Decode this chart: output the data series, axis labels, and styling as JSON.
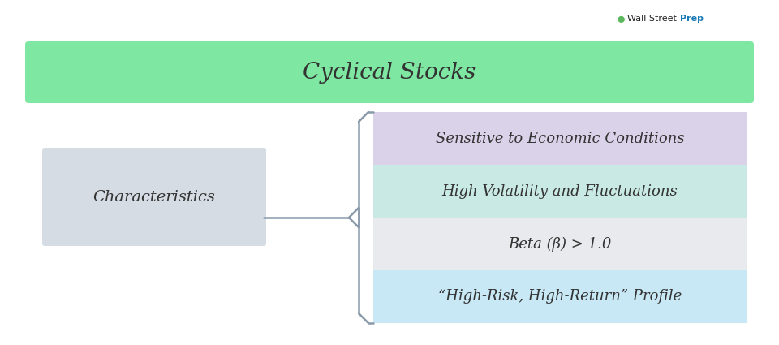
{
  "title": "Cyclical Stocks",
  "title_bg_color": "#7EE8A2",
  "title_font_size": 20,
  "left_box_text": "Characteristics",
  "left_box_color": "#D6DCE4",
  "right_boxes": [
    {
      "text": "Sensitive to Economic Conditions",
      "color": "#D9D2E9"
    },
    {
      "text": "High Volatility and Fluctuations",
      "color": "#C9EAE4"
    },
    {
      "text": "Beta (β) > 1.0",
      "color": "#E8EAED"
    },
    {
      "text": "“High-Risk, High-Return” Profile",
      "color": "#C8E8F5"
    }
  ],
  "font_color": "#333333",
  "bg_color": "#FFFFFF",
  "bracket_color": "#8899AA",
  "watermark_black": "Wall Street",
  "watermark_blue": "Prep"
}
